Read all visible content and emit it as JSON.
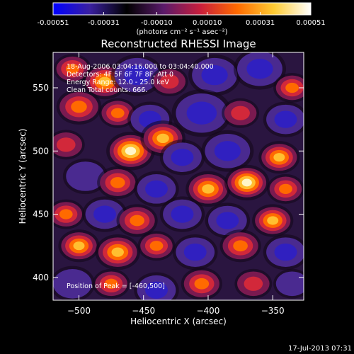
{
  "colorbar": {
    "tick_labels": [
      "-0.00051",
      "-0.00031",
      "-0.00010",
      "0.00010",
      "0.00031",
      "0.00051"
    ],
    "tick_values": [
      -0.00051,
      -0.00031,
      -0.0001,
      0.0001,
      0.00031,
      0.00051
    ],
    "range": [
      -0.00051,
      0.00051
    ],
    "unit_label": "(photons cm⁻² s⁻¹ asec⁻²)",
    "colors": [
      "#0000ff",
      "#3a20a0",
      "#000000",
      "#5a1a6a",
      "#c81e3c",
      "#ff6a00",
      "#ffcc33",
      "#ffffff"
    ]
  },
  "chart_data": {
    "type": "heatmap",
    "title": "Reconstructed RHESSI Image",
    "xlabel": "Heliocentric X (arcsec)",
    "ylabel": "Heliocentric Y (arcsec)",
    "xlim": [
      -520,
      -326
    ],
    "ylim": [
      382,
      578
    ],
    "x_ticks": [
      -500,
      -450,
      -400,
      -350
    ],
    "x_tick_labels": [
      "−500",
      "−450",
      "−400",
      "−350"
    ],
    "y_ticks": [
      400,
      450,
      500,
      550
    ],
    "y_tick_labels": [
      "400",
      "450",
      "500",
      "550"
    ],
    "annotations": [
      "18-Aug-2006 03:04:16.000 to 03:04:40.000",
      "Detectors: 4F 5F 6F 7F 8F, Att 0",
      "Energy Range: 12.0 - 25.0 keV",
      "Clean     Total counts: 666."
    ],
    "peak_label": "Position of Peak = [-460,500]",
    "peak_position": [
      -460,
      500
    ],
    "blobs": [
      {
        "x": -505,
        "y": 565,
        "v": 0.6,
        "r": 10
      },
      {
        "x": -480,
        "y": 555,
        "v": 0.7,
        "r": 12
      },
      {
        "x": -455,
        "y": 560,
        "v": -0.6,
        "r": 14
      },
      {
        "x": -430,
        "y": 555,
        "v": 0.4,
        "r": 10
      },
      {
        "x": -395,
        "y": 560,
        "v": -0.5,
        "r": 14
      },
      {
        "x": -360,
        "y": 565,
        "v": -0.7,
        "r": 14
      },
      {
        "x": -335,
        "y": 550,
        "v": 0.5,
        "r": 10
      },
      {
        "x": -500,
        "y": 535,
        "v": 0.6,
        "r": 12
      },
      {
        "x": -470,
        "y": 530,
        "v": 0.5,
        "r": 10
      },
      {
        "x": -445,
        "y": 525,
        "v": -0.5,
        "r": 12
      },
      {
        "x": -405,
        "y": 530,
        "v": -0.7,
        "r": 16
      },
      {
        "x": -375,
        "y": 530,
        "v": 0.3,
        "r": 10
      },
      {
        "x": -340,
        "y": 525,
        "v": -0.6,
        "r": 12
      },
      {
        "x": -510,
        "y": 505,
        "v": 0.4,
        "r": 10
      },
      {
        "x": -460,
        "y": 500,
        "v": 1.0,
        "r": 13
      },
      {
        "x": -435,
        "y": 510,
        "v": 0.8,
        "r": 12
      },
      {
        "x": -420,
        "y": 495,
        "v": -0.6,
        "r": 12
      },
      {
        "x": -385,
        "y": 500,
        "v": -0.5,
        "r": 14
      },
      {
        "x": -345,
        "y": 495,
        "v": 0.7,
        "r": 11
      },
      {
        "x": -495,
        "y": 480,
        "v": -0.4,
        "r": 12
      },
      {
        "x": -470,
        "y": 475,
        "v": 0.6,
        "r": 11
      },
      {
        "x": -440,
        "y": 470,
        "v": -0.6,
        "r": 12
      },
      {
        "x": -400,
        "y": 470,
        "v": 0.7,
        "r": 12
      },
      {
        "x": -370,
        "y": 475,
        "v": 0.9,
        "r": 12
      },
      {
        "x": -340,
        "y": 470,
        "v": 0.6,
        "r": 10
      },
      {
        "x": -510,
        "y": 450,
        "v": 0.5,
        "r": 10
      },
      {
        "x": -480,
        "y": 450,
        "v": -0.5,
        "r": 12
      },
      {
        "x": -455,
        "y": 445,
        "v": 0.6,
        "r": 11
      },
      {
        "x": -420,
        "y": 450,
        "v": -0.5,
        "r": 12
      },
      {
        "x": -385,
        "y": 445,
        "v": -0.6,
        "r": 12
      },
      {
        "x": -350,
        "y": 445,
        "v": 0.7,
        "r": 11
      },
      {
        "x": -500,
        "y": 425,
        "v": 0.7,
        "r": 11
      },
      {
        "x": -470,
        "y": 420,
        "v": 0.8,
        "r": 12
      },
      {
        "x": -440,
        "y": 425,
        "v": 0.6,
        "r": 10
      },
      {
        "x": -410,
        "y": 420,
        "v": -0.5,
        "r": 12
      },
      {
        "x": -375,
        "y": 425,
        "v": 0.6,
        "r": 11
      },
      {
        "x": -340,
        "y": 420,
        "v": -0.5,
        "r": 12
      },
      {
        "x": -505,
        "y": 395,
        "v": -0.4,
        "r": 12
      },
      {
        "x": -475,
        "y": 395,
        "v": 0.5,
        "r": 10
      },
      {
        "x": -440,
        "y": 390,
        "v": -0.5,
        "r": 12
      },
      {
        "x": -405,
        "y": 395,
        "v": 0.5,
        "r": 11
      },
      {
        "x": -365,
        "y": 395,
        "v": 0.4,
        "r": 10
      },
      {
        "x": -335,
        "y": 395,
        "v": -0.4,
        "r": 10
      }
    ]
  },
  "footer": {
    "timestamp": "17-Jul-2013 07:31"
  }
}
